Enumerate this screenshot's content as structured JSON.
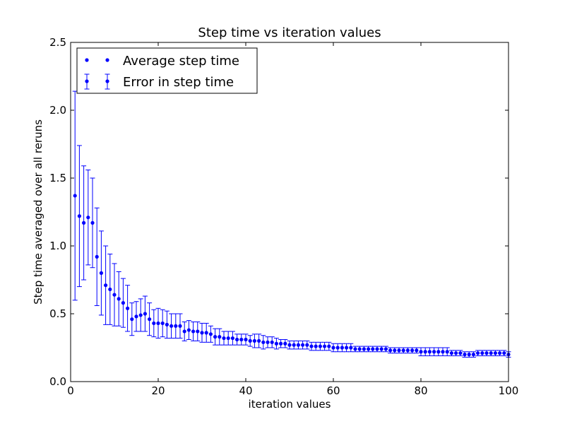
{
  "chart_data": {
    "type": "scatter",
    "title": "Step time vs iteration values",
    "xlabel": "iteration values",
    "ylabel": "Step time averaged over all reruns",
    "xlim": [
      0,
      100
    ],
    "ylim": [
      0.0,
      2.5
    ],
    "xticks": [
      "0",
      "20",
      "40",
      "60",
      "80",
      "100"
    ],
    "yticks": [
      "0.0",
      "0.5",
      "1.0",
      "1.5",
      "2.0",
      "2.5"
    ],
    "grid": false,
    "legend_position": "top-left",
    "marker_color": "#0000ff",
    "series": [
      {
        "name": "Average step time",
        "x": [
          1,
          2,
          3,
          4,
          5,
          6,
          7,
          8,
          9,
          10,
          11,
          12,
          13,
          14,
          15,
          16,
          17,
          18,
          19,
          20,
          21,
          22,
          23,
          24,
          25,
          26,
          27,
          28,
          29,
          30,
          31,
          32,
          33,
          34,
          35,
          36,
          37,
          38,
          39,
          40,
          41,
          42,
          43,
          44,
          45,
          46,
          47,
          48,
          49,
          50,
          51,
          52,
          53,
          54,
          55,
          56,
          57,
          58,
          59,
          60,
          61,
          62,
          63,
          64,
          65,
          66,
          67,
          68,
          69,
          70,
          71,
          72,
          73,
          74,
          75,
          76,
          77,
          78,
          79,
          80,
          81,
          82,
          83,
          84,
          85,
          86,
          87,
          88,
          89,
          90,
          91,
          92,
          93,
          94,
          95,
          96,
          97,
          98,
          99,
          100
        ],
        "y": [
          1.37,
          1.22,
          1.17,
          1.21,
          1.17,
          0.92,
          0.8,
          0.71,
          0.68,
          0.64,
          0.61,
          0.58,
          0.54,
          0.46,
          0.48,
          0.49,
          0.5,
          0.46,
          0.43,
          0.43,
          0.43,
          0.42,
          0.41,
          0.41,
          0.41,
          0.37,
          0.38,
          0.37,
          0.37,
          0.36,
          0.36,
          0.35,
          0.33,
          0.33,
          0.32,
          0.32,
          0.32,
          0.31,
          0.31,
          0.31,
          0.3,
          0.3,
          0.3,
          0.29,
          0.29,
          0.29,
          0.28,
          0.28,
          0.28,
          0.27,
          0.27,
          0.27,
          0.27,
          0.27,
          0.26,
          0.26,
          0.26,
          0.26,
          0.26,
          0.25,
          0.25,
          0.25,
          0.25,
          0.25,
          0.24,
          0.24,
          0.24,
          0.24,
          0.24,
          0.24,
          0.24,
          0.24,
          0.23,
          0.23,
          0.23,
          0.23,
          0.23,
          0.23,
          0.23,
          0.22,
          0.22,
          0.22,
          0.22,
          0.22,
          0.22,
          0.22,
          0.21,
          0.21,
          0.21,
          0.2,
          0.2,
          0.2,
          0.21,
          0.21,
          0.21,
          0.21,
          0.21,
          0.21,
          0.21,
          0.2
        ]
      },
      {
        "name": "Error in step time",
        "err": [
          0.77,
          0.52,
          0.42,
          0.35,
          0.33,
          0.36,
          0.31,
          0.29,
          0.26,
          0.23,
          0.2,
          0.18,
          0.17,
          0.12,
          0.11,
          0.12,
          0.13,
          0.12,
          0.1,
          0.11,
          0.1,
          0.1,
          0.09,
          0.09,
          0.09,
          0.07,
          0.07,
          0.07,
          0.07,
          0.07,
          0.07,
          0.06,
          0.06,
          0.06,
          0.05,
          0.05,
          0.05,
          0.04,
          0.04,
          0.04,
          0.04,
          0.05,
          0.05,
          0.05,
          0.04,
          0.04,
          0.04,
          0.03,
          0.03,
          0.03,
          0.03,
          0.03,
          0.03,
          0.03,
          0.03,
          0.03,
          0.03,
          0.03,
          0.03,
          0.03,
          0.03,
          0.03,
          0.03,
          0.03,
          0.02,
          0.02,
          0.02,
          0.02,
          0.02,
          0.02,
          0.02,
          0.02,
          0.02,
          0.02,
          0.02,
          0.02,
          0.02,
          0.02,
          0.02,
          0.03,
          0.03,
          0.03,
          0.03,
          0.03,
          0.03,
          0.03,
          0.02,
          0.02,
          0.02,
          0.02,
          0.02,
          0.02,
          0.02,
          0.02,
          0.02,
          0.02,
          0.02,
          0.02,
          0.02,
          0.02
        ]
      }
    ]
  }
}
